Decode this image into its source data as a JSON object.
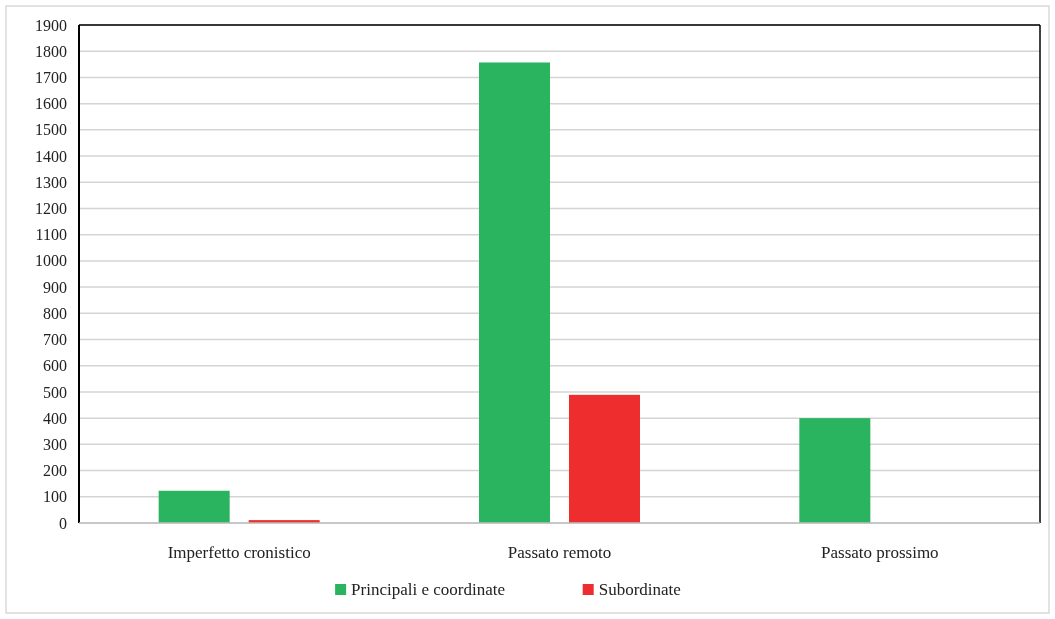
{
  "chart_data": {
    "type": "bar",
    "categories": [
      "Imperfetto cronistico",
      "Passato remoto",
      "Passato prossimo"
    ],
    "series": [
      {
        "name": "Principali e coordinate",
        "color": "#2bb45f",
        "values": [
          123,
          1757,
          400
        ]
      },
      {
        "name": "Subordinate",
        "color": "#ee2e2e",
        "values": [
          11,
          489,
          0
        ]
      }
    ],
    "ylim": [
      0,
      1900
    ],
    "yticks": [
      0,
      100,
      200,
      300,
      400,
      500,
      600,
      700,
      800,
      900,
      1000,
      1100,
      1200,
      1300,
      1400,
      1500,
      1600,
      1700,
      1800,
      1900
    ],
    "grid": "y",
    "legend": "bottom"
  }
}
